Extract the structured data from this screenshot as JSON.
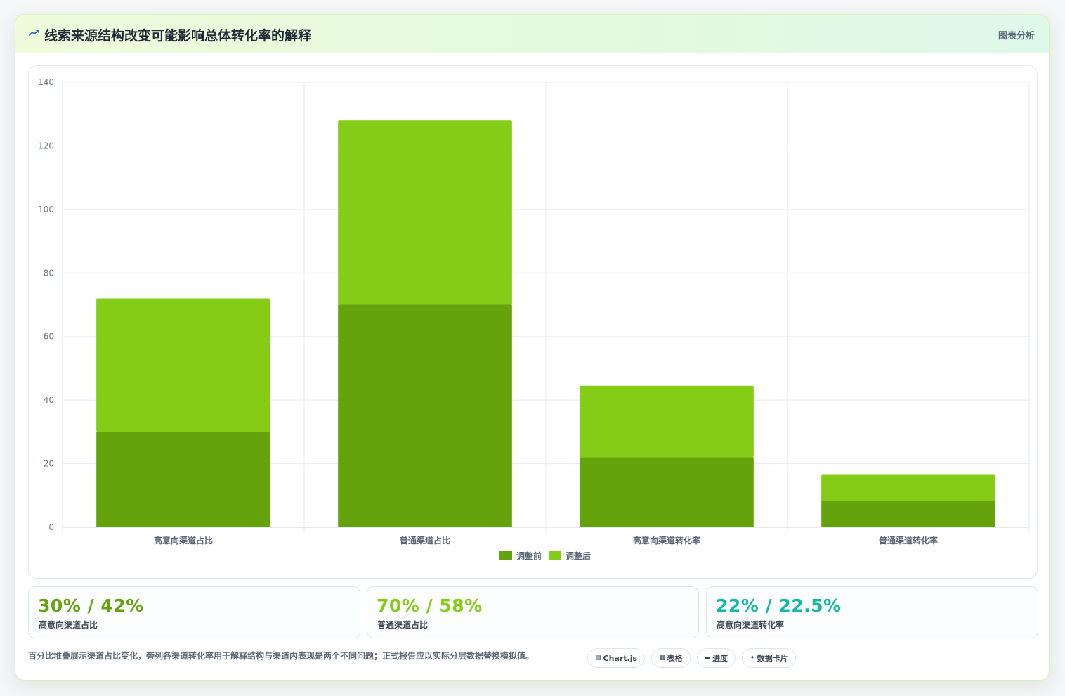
{
  "header": {
    "title": "线索来源结构改变可能影响总体转化率的解释",
    "tag": "图表分析",
    "icon": "trend-line-icon"
  },
  "chart_data": {
    "type": "bar",
    "stacked": true,
    "categories": [
      "高意向渠道占比",
      "普通渠道占比",
      "高意向渠道转化率",
      "普通渠道转化率"
    ],
    "series": [
      {
        "name": "调整前",
        "values": [
          30,
          70,
          22,
          8.2
        ],
        "color": "#65a30d"
      },
      {
        "name": "调整后",
        "values": [
          42,
          58,
          22.5,
          8.5
        ],
        "color": "#84cc16"
      }
    ],
    "ylim": [
      0,
      140
    ],
    "yticks": [
      0,
      20,
      40,
      60,
      80,
      100,
      120,
      140
    ],
    "grid": true,
    "legend": "bottom"
  },
  "stats": [
    {
      "value": "30% / 42%",
      "label": "高意向渠道占比",
      "color": "#65a30d"
    },
    {
      "value": "70% / 58%",
      "label": "普通渠道占比",
      "color": "#84cc16"
    },
    {
      "value": "22% / 22.5%",
      "label": "高意向渠道转化率",
      "color": "#14b8a6"
    }
  ],
  "footnote": "百分比堆叠展示渠道占比变化，旁列各渠道转化率用于解释结构与渠道内表现是两个不同问题；正式报告应以实际分层数据替换模拟值。",
  "chips": [
    {
      "icon": "chart-icon",
      "glyph": "▤",
      "label": "Chart.js"
    },
    {
      "icon": "table-icon",
      "glyph": "▦",
      "label": "表格"
    },
    {
      "icon": "progress-icon",
      "glyph": "▬",
      "label": "进度"
    },
    {
      "icon": "sparkle-icon",
      "glyph": "✦",
      "label": "数据卡片"
    }
  ]
}
